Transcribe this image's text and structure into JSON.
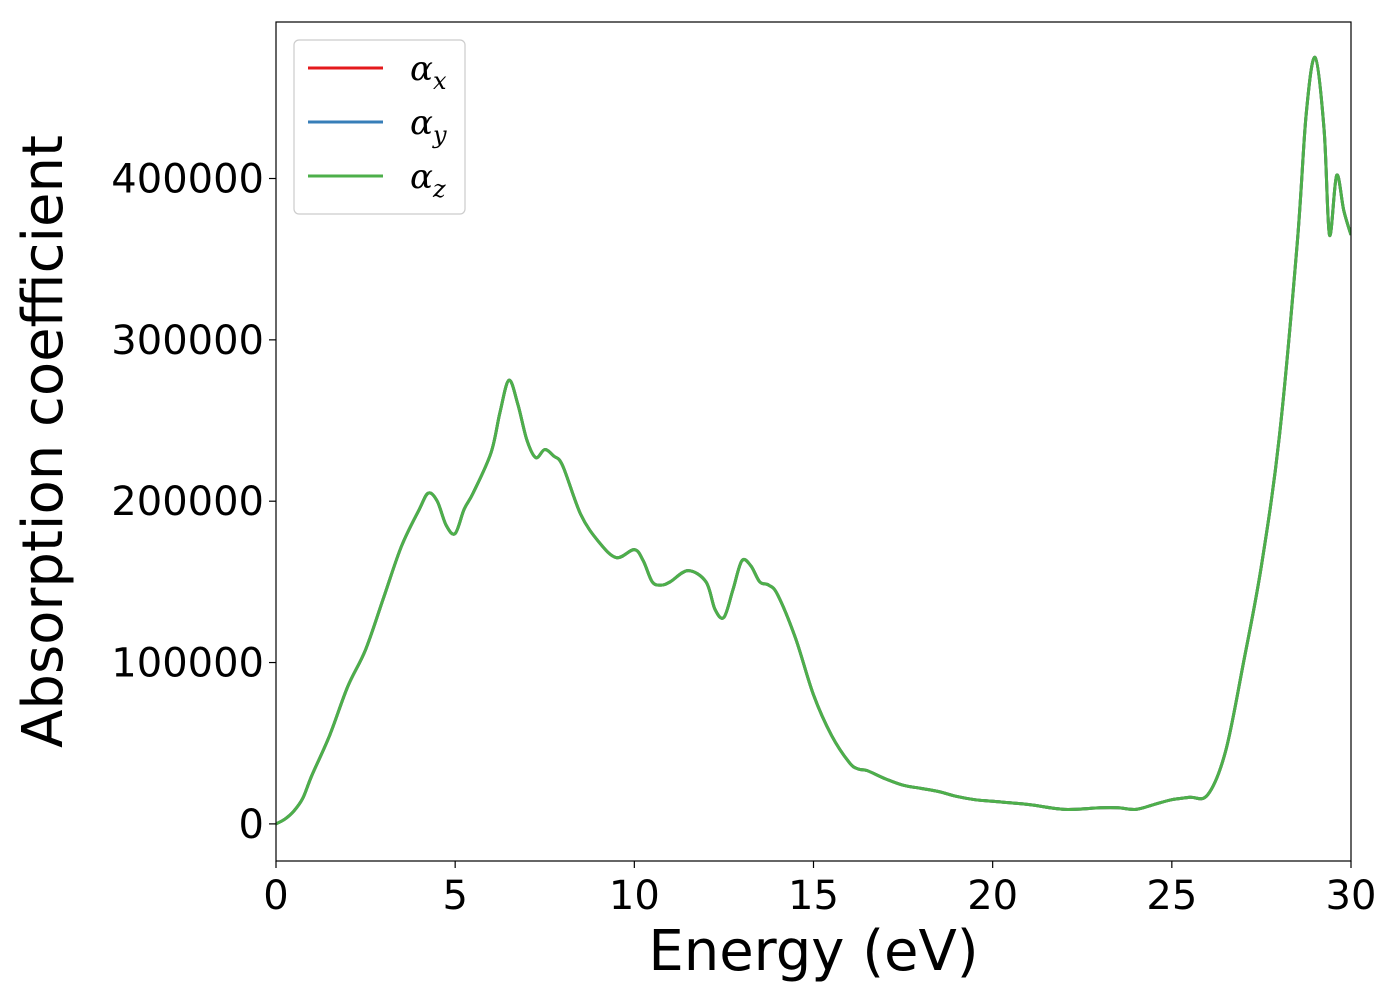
{
  "chart_data": {
    "type": "line",
    "title": "",
    "xlabel": "Energy (eV)",
    "ylabel": "Absorption coefficient",
    "xlim": [
      0,
      30
    ],
    "ylim": [
      -23000,
      497000
    ],
    "xticks": [
      0,
      5,
      10,
      15,
      20,
      25,
      30
    ],
    "yticks": [
      0,
      100000,
      200000,
      300000,
      400000
    ],
    "grid": false,
    "legend": "top-left",
    "x": [
      0,
      0.25,
      0.5,
      0.75,
      1,
      1.5,
      2,
      2.5,
      3,
      3.5,
      4,
      4.25,
      4.5,
      4.75,
      5,
      5.25,
      5.5,
      6,
      6.25,
      6.5,
      6.75,
      7,
      7.25,
      7.5,
      7.75,
      8,
      8.5,
      9,
      9.5,
      10,
      10.25,
      10.5,
      10.75,
      11,
      11.5,
      12,
      12.25,
      12.5,
      12.75,
      13,
      13.25,
      13.5,
      13.75,
      14,
      14.5,
      15,
      15.5,
      16,
      16.25,
      16.5,
      17,
      17.5,
      18,
      18.5,
      19,
      19.5,
      20,
      21,
      22,
      23,
      23.5,
      24,
      24.5,
      25,
      25.5,
      26,
      26.5,
      27,
      27.5,
      28,
      28.5,
      28.75,
      29,
      29.25,
      29.4,
      29.6,
      29.8,
      30
    ],
    "series": [
      {
        "name": "α",
        "subscript": "x",
        "color": "#e41a1c",
        "values": [
          0,
          3000,
          8000,
          16000,
          30000,
          55000,
          85000,
          108000,
          140000,
          172000,
          195000,
          205000,
          200000,
          185000,
          180000,
          195000,
          205000,
          230000,
          255000,
          275000,
          260000,
          238000,
          227000,
          232000,
          228000,
          222000,
          192000,
          175000,
          165000,
          170000,
          163000,
          150000,
          148000,
          150000,
          157000,
          150000,
          133000,
          128000,
          145000,
          163000,
          160000,
          150000,
          148000,
          142000,
          115000,
          80000,
          55000,
          38000,
          34000,
          33000,
          28000,
          24000,
          22000,
          20000,
          17000,
          15000,
          14000,
          12000,
          9000,
          10000,
          10000,
          9000,
          12000,
          15000,
          16500,
          18000,
          45000,
          100000,
          160000,
          240000,
          360000,
          440000,
          475000,
          430000,
          365000,
          402000,
          380000,
          365000
        ]
      },
      {
        "name": "α",
        "subscript": "y",
        "color": "#377eb8",
        "values": [
          0,
          3000,
          8000,
          16000,
          30000,
          55000,
          85000,
          108000,
          140000,
          172000,
          195000,
          205000,
          200000,
          185000,
          180000,
          195000,
          205000,
          230000,
          255000,
          275000,
          260000,
          238000,
          227000,
          232000,
          228000,
          222000,
          192000,
          175000,
          165000,
          170000,
          163000,
          150000,
          148000,
          150000,
          157000,
          150000,
          133000,
          128000,
          145000,
          163000,
          160000,
          150000,
          148000,
          142000,
          115000,
          80000,
          55000,
          38000,
          34000,
          33000,
          28000,
          24000,
          22000,
          20000,
          17000,
          15000,
          14000,
          12000,
          9000,
          10000,
          10000,
          9000,
          12000,
          15000,
          16500,
          18000,
          45000,
          100000,
          160000,
          240000,
          360000,
          440000,
          475000,
          430000,
          365000,
          402000,
          380000,
          365000
        ]
      },
      {
        "name": "α",
        "subscript": "z",
        "color": "#4daf4a",
        "values": [
          0,
          3000,
          8000,
          16000,
          30000,
          55000,
          85000,
          108000,
          140000,
          172000,
          195000,
          205000,
          200000,
          185000,
          180000,
          195000,
          205000,
          230000,
          255000,
          275000,
          260000,
          238000,
          227000,
          232000,
          228000,
          222000,
          192000,
          175000,
          165000,
          170000,
          163000,
          150000,
          148000,
          150000,
          157000,
          150000,
          133000,
          128000,
          145000,
          163000,
          160000,
          150000,
          148000,
          142000,
          115000,
          80000,
          55000,
          38000,
          34000,
          33000,
          28000,
          24000,
          22000,
          20000,
          17000,
          15000,
          14000,
          12000,
          9000,
          10000,
          10000,
          9000,
          12000,
          15000,
          16500,
          18000,
          45000,
          100000,
          160000,
          240000,
          360000,
          440000,
          475000,
          430000,
          365000,
          402000,
          380000,
          365000
        ]
      }
    ]
  }
}
